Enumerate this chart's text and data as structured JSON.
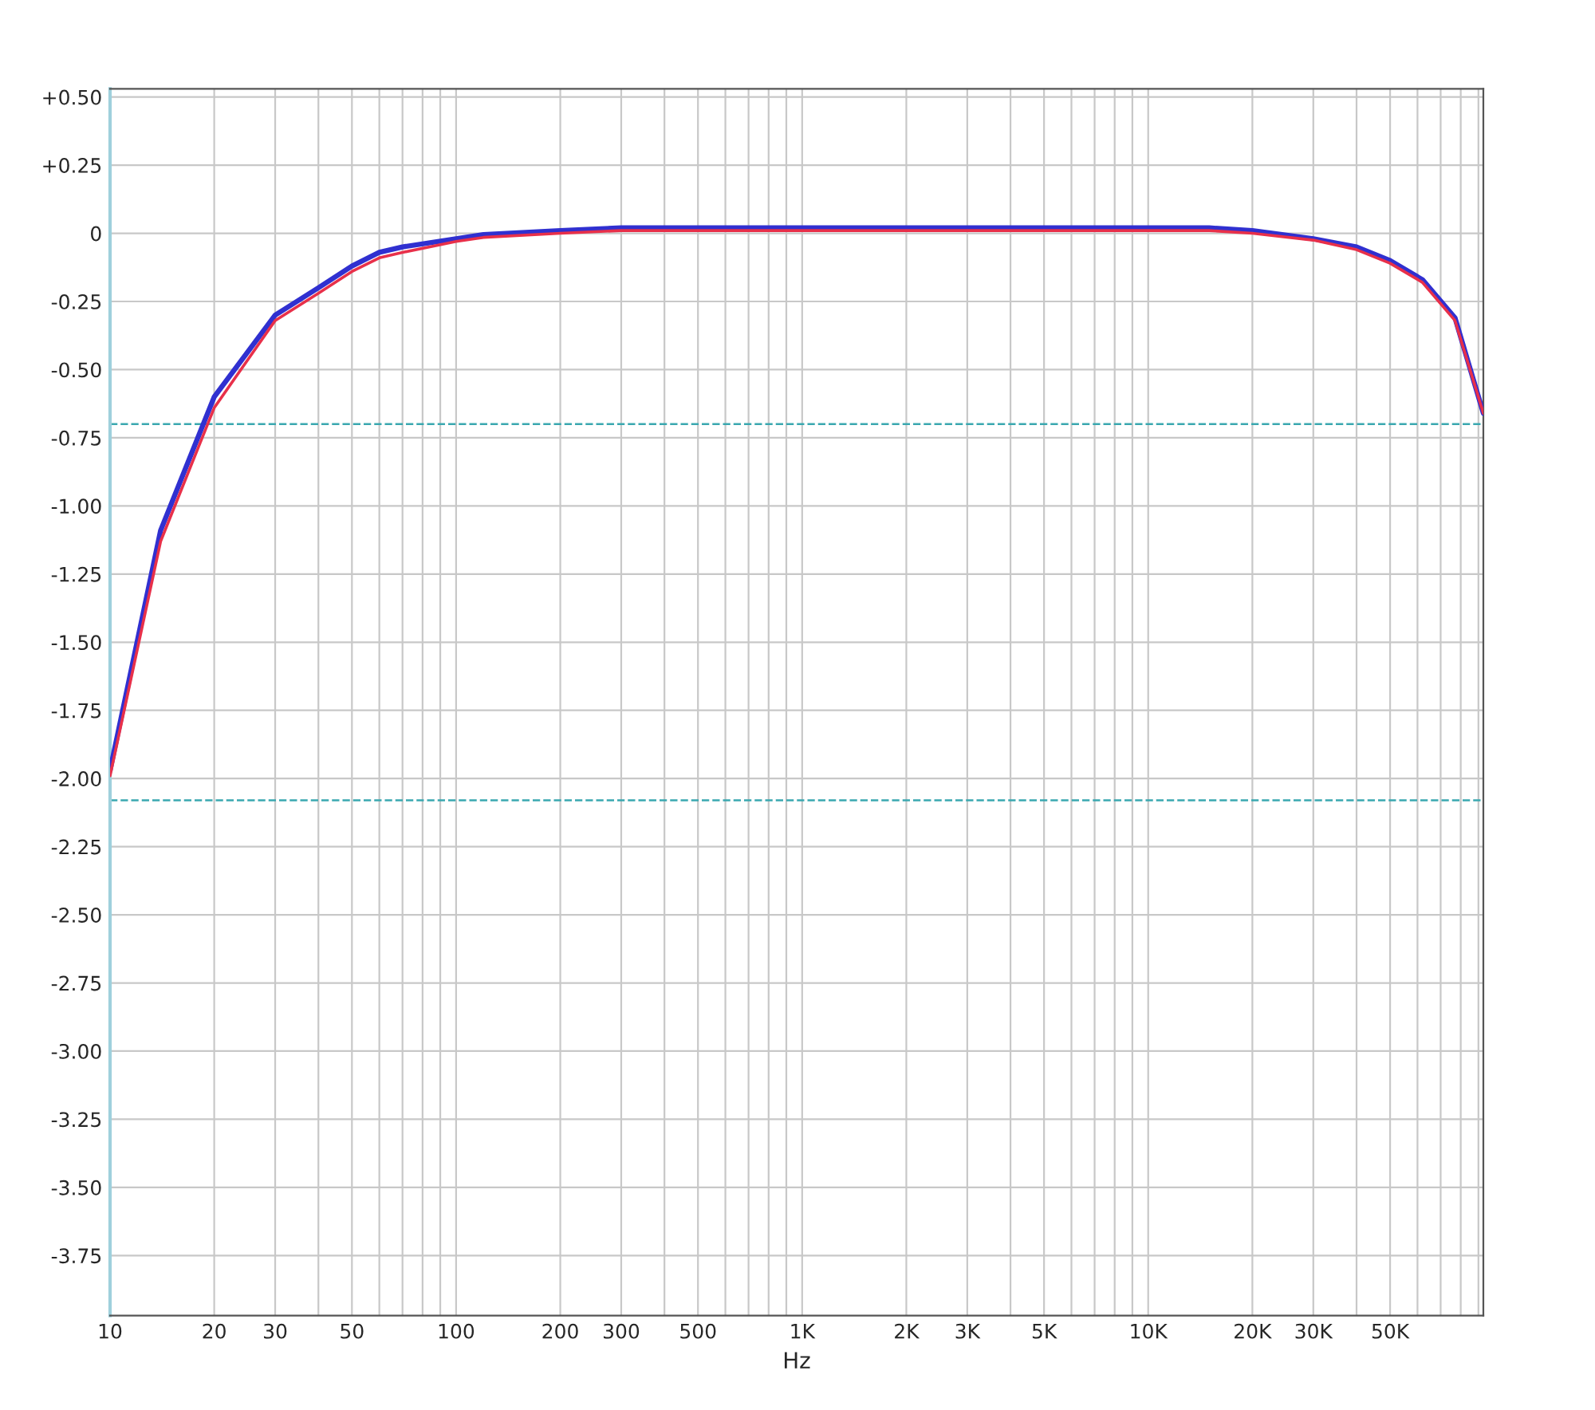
{
  "chart_data": {
    "type": "line",
    "xlabel": "Hz",
    "log": "x",
    "grid": true,
    "legend": false,
    "marker": "none",
    "line_style": "solid",
    "xlim": [
      10,
      93000
    ],
    "ylim": [
      -3.97,
      0.53
    ],
    "xticks": [
      10,
      20,
      30,
      {
        "value": 40,
        "label": null
      },
      50,
      {
        "value": 60,
        "label": null
      },
      {
        "value": 70,
        "label": null
      },
      {
        "value": 80,
        "label": null
      },
      {
        "value": 90,
        "label": null
      },
      100,
      200,
      300,
      {
        "value": 400,
        "label": null
      },
      500,
      {
        "value": 600,
        "label": null
      },
      {
        "value": 700,
        "label": null
      },
      {
        "value": 800,
        "label": null
      },
      {
        "value": 900,
        "label": null
      },
      {
        "value": 1000,
        "label": "1K"
      },
      {
        "value": 2000,
        "label": "2K"
      },
      {
        "value": 3000,
        "label": "3K"
      },
      {
        "value": 4000,
        "label": null
      },
      {
        "value": 5000,
        "label": "5K"
      },
      {
        "value": 6000,
        "label": null
      },
      {
        "value": 7000,
        "label": null
      },
      {
        "value": 8000,
        "label": null
      },
      {
        "value": 9000,
        "label": null
      },
      {
        "value": 10000,
        "label": "10K"
      },
      {
        "value": 20000,
        "label": "20K"
      },
      {
        "value": 30000,
        "label": "30K"
      },
      {
        "value": 40000,
        "label": null
      },
      {
        "value": 50000,
        "label": "50K"
      },
      {
        "value": 60000,
        "label": null
      },
      {
        "value": 70000,
        "label": null
      },
      {
        "value": 80000,
        "label": null
      },
      {
        "value": 90000,
        "label": null
      }
    ],
    "yticks": [
      {
        "value": 0.5,
        "label": "+0.50"
      },
      {
        "value": 0.25,
        "label": "+0.25"
      },
      0,
      -0.25,
      {
        "value": -0.5,
        "label": "-0.50"
      },
      -0.75,
      {
        "value": -1,
        "label": "-1.00"
      },
      -1.25,
      {
        "value": -1.5,
        "label": "-1.50"
      },
      -1.75,
      {
        "value": -2,
        "label": "-2.00"
      },
      -2.25,
      {
        "value": -2.5,
        "label": "-2.50"
      },
      -2.75,
      {
        "value": -3,
        "label": "-3.00"
      },
      -3.25,
      {
        "value": -3.5,
        "label": "-3.50"
      },
      -3.75
    ],
    "ref_lines": [
      {
        "axis": "y",
        "value": -0.7,
        "color": "#3aa8b0",
        "line_style": "dashed"
      },
      {
        "axis": "y",
        "value": -2.08,
        "color": "#3aa8b0",
        "line_style": "dashed"
      }
    ],
    "series": [
      {
        "color": "#3030d0",
        "x": [
          10,
          14,
          20,
          30,
          40,
          50,
          60,
          70,
          100,
          120,
          200,
          300,
          1000,
          10000,
          15000,
          20000,
          30000,
          40000,
          50000,
          62000,
          77000,
          93000
        ],
        "values": [
          -1.97,
          -1.09,
          -0.6,
          -0.3,
          -0.2,
          -0.12,
          -0.07,
          -0.05,
          -0.02,
          -0.005,
          0.01,
          0.02,
          0.02,
          0.02,
          0.02,
          0.01,
          -0.02,
          -0.05,
          -0.1,
          -0.17,
          -0.31,
          -0.66
        ]
      },
      {
        "color": "#e8304a",
        "x": [
          10,
          14,
          20,
          30,
          40,
          50,
          60,
          70,
          100,
          120,
          200,
          300,
          1000,
          10000,
          15000,
          20000,
          30000,
          40000,
          50000,
          62000,
          77000,
          93000
        ],
        "values": [
          -1.99,
          -1.13,
          -0.64,
          -0.32,
          -0.22,
          -0.14,
          -0.09,
          -0.07,
          -0.03,
          -0.015,
          0.0,
          0.01,
          0.01,
          0.01,
          0.01,
          0.0,
          -0.025,
          -0.06,
          -0.11,
          -0.18,
          -0.32,
          -0.66
        ]
      }
    ]
  }
}
